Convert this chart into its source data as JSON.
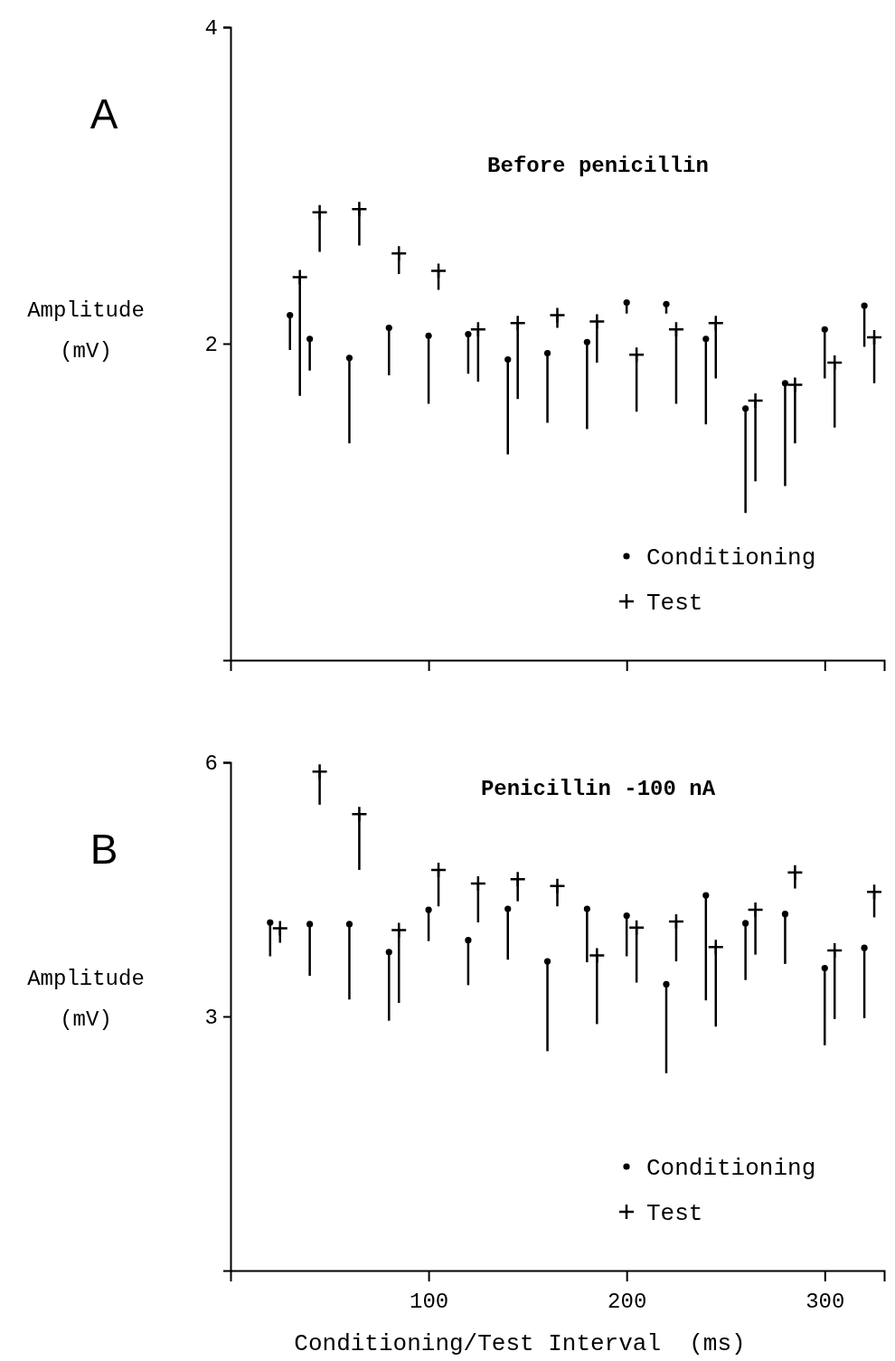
{
  "chart_data": [
    {
      "type": "scatter",
      "title": "A",
      "subtitle": "Before penicillin",
      "ylabel": "Amplitude (mV)",
      "xlim": [
        0,
        330
      ],
      "xticks": [
        100,
        200,
        300
      ],
      "ylim": [
        0,
        4
      ],
      "yticks": [
        2,
        4
      ],
      "tick_labels": "y",
      "grid": false,
      "legend": "bottom right",
      "series": [
        {
          "name": "Conditioning",
          "color": "#000000",
          "marker": "circle",
          "x": [
            30,
            40,
            60,
            80,
            100,
            120,
            140,
            160,
            180,
            200,
            220,
            240,
            260,
            280,
            300,
            320
          ],
          "values": [
            2.18,
            2.03,
            1.91,
            2.1,
            2.05,
            2.06,
            1.9,
            1.94,
            2.01,
            2.26,
            2.25,
            2.03,
            1.59,
            1.75,
            2.09,
            2.24
          ],
          "errors": [
            [
              1.96,
              2.18
            ],
            [
              1.83,
              2.03
            ],
            [
              1.37,
              1.91
            ],
            [
              1.8,
              2.1
            ],
            [
              1.62,
              2.05
            ],
            [
              1.81,
              2.06
            ],
            [
              1.3,
              1.9
            ],
            [
              1.5,
              1.94
            ],
            [
              1.46,
              2.01
            ],
            [
              2.19,
              2.26
            ],
            [
              2.19,
              2.25
            ],
            [
              1.49,
              2.03
            ],
            [
              0.93,
              1.59
            ],
            [
              1.1,
              1.75
            ],
            [
              1.78,
              2.09
            ],
            [
              1.98,
              2.24
            ]
          ]
        },
        {
          "name": "Test",
          "color": "#000000",
          "marker": "cross",
          "x": [
            35,
            45,
            65,
            85,
            105,
            125,
            145,
            165,
            185,
            205,
            225,
            245,
            265,
            285,
            305,
            325
          ],
          "values": [
            2.42,
            2.83,
            2.85,
            2.57,
            2.46,
            2.09,
            2.13,
            2.18,
            2.14,
            1.93,
            2.09,
            2.13,
            1.64,
            1.74,
            1.88,
            2.04
          ],
          "errors": [
            [
              1.67,
              2.42
            ],
            [
              2.58,
              2.83
            ],
            [
              2.62,
              2.85
            ],
            [
              2.44,
              2.57
            ],
            [
              2.34,
              2.46
            ],
            [
              1.76,
              2.09
            ],
            [
              1.65,
              2.13
            ],
            [
              2.1,
              2.18
            ],
            [
              1.88,
              2.14
            ],
            [
              1.57,
              1.93
            ],
            [
              1.62,
              2.09
            ],
            [
              1.78,
              2.13
            ],
            [
              1.13,
              1.64
            ],
            [
              1.37,
              1.74
            ],
            [
              1.47,
              1.88
            ],
            [
              1.75,
              2.04
            ]
          ]
        }
      ]
    },
    {
      "type": "scatter",
      "title": "B",
      "subtitle": "Penicillin -100 nA",
      "xlabel": "Conditioning/Test Interval  (ms)",
      "ylabel": "Amplitude (mV)",
      "xlim": [
        0,
        330
      ],
      "xticks": [
        100,
        200,
        300
      ],
      "ylim": [
        0,
        6
      ],
      "yticks": [
        3,
        6
      ],
      "grid": false,
      "legend": "bottom right",
      "series": [
        {
          "name": "Conditioning",
          "color": "#000000",
          "marker": "circle",
          "x": [
            20,
            40,
            60,
            80,
            100,
            120,
            140,
            160,
            180,
            200,
            220,
            240,
            260,
            280,
            300,
            320
          ],
          "values": [
            4.11,
            4.09,
            4.09,
            3.76,
            4.26,
            3.9,
            4.27,
            3.65,
            4.27,
            4.19,
            3.38,
            4.43,
            4.1,
            4.21,
            3.57,
            3.81
          ],
          "errors": [
            [
              3.71,
              4.11
            ],
            [
              3.48,
              4.09
            ],
            [
              3.2,
              4.09
            ],
            [
              2.95,
              3.76
            ],
            [
              3.89,
              4.26
            ],
            [
              3.37,
              3.9
            ],
            [
              3.67,
              4.27
            ],
            [
              2.59,
              3.65
            ],
            [
              3.64,
              4.27
            ],
            [
              3.71,
              4.19
            ],
            [
              2.33,
              3.38
            ],
            [
              3.19,
              4.43
            ],
            [
              3.43,
              4.1
            ],
            [
              3.62,
              4.21
            ],
            [
              2.66,
              3.57
            ],
            [
              2.98,
              3.81
            ]
          ]
        },
        {
          "name": "Test",
          "color": "#000000",
          "marker": "cross",
          "x": [
            25,
            45,
            65,
            85,
            105,
            125,
            145,
            165,
            185,
            205,
            225,
            245,
            265,
            285,
            305,
            325
          ],
          "values": [
            4.04,
            5.89,
            5.39,
            4.02,
            4.73,
            4.57,
            4.62,
            4.54,
            3.72,
            4.05,
            4.12,
            3.82,
            4.26,
            4.7,
            3.78,
            4.47
          ],
          "errors": [
            [
              3.87,
              4.04
            ],
            [
              5.5,
              5.89
            ],
            [
              4.73,
              5.39
            ],
            [
              3.16,
              4.02
            ],
            [
              4.3,
              4.73
            ],
            [
              4.11,
              4.57
            ],
            [
              4.36,
              4.62
            ],
            [
              4.3,
              4.54
            ],
            [
              2.91,
              3.72
            ],
            [
              3.4,
              4.05
            ],
            [
              3.65,
              4.12
            ],
            [
              2.88,
              3.82
            ],
            [
              3.73,
              4.26
            ],
            [
              4.51,
              4.7
            ],
            [
              2.97,
              3.78
            ],
            [
              4.17,
              4.47
            ]
          ]
        }
      ]
    }
  ]
}
